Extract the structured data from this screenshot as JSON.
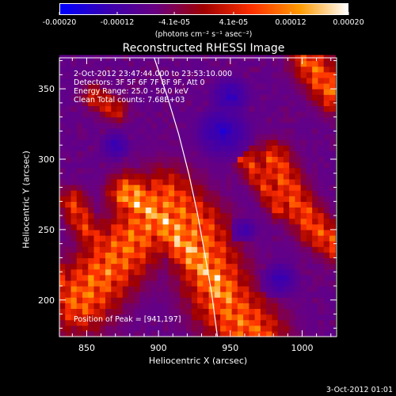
{
  "colorbar": {
    "ticks": [
      "-0.00020",
      "-0.00012",
      "-4.1e-05",
      "4.1e-05",
      "0.00012",
      "0.00020"
    ],
    "tick_values": [
      -0.0002,
      -0.00012,
      -4.1e-05,
      4.1e-05,
      0.00012,
      0.0002
    ],
    "range": [
      -0.0002,
      0.0002
    ],
    "units": "(photons cm⁻² s⁻¹ asec⁻²)",
    "colors": [
      "#0000ff",
      "#3a00b0",
      "#6a0080",
      "#a00000",
      "#ff3000",
      "#ff9a00",
      "#ffffff"
    ]
  },
  "chart_data": {
    "type": "heatmap",
    "title": "Reconstructed RHESSI Image",
    "xlabel": "Heliocentric X (arcsec)",
    "ylabel": "Heliocentric Y (arcsec)",
    "xlim": [
      831,
      1024
    ],
    "ylim": [
      174,
      372
    ],
    "xticks": [
      850,
      900,
      950,
      1000
    ],
    "yticks": [
      200,
      250,
      300,
      350
    ],
    "info_lines": [
      "2-Oct-2012 23:47:44.000 to 23:53:10.000",
      "Detectors: 3F 5F 6F 7F 8F 9F, Att 0",
      "Energy Range: 25.0 - 50.0 keV",
      "Clean    Total counts: 7.68E+03"
    ],
    "peak_label": "Position of Peak = [941,197]",
    "peak": [
      941,
      197
    ],
    "limb_curve": [
      [
        897,
        372
      ],
      [
        906,
        345
      ],
      [
        914,
        318
      ],
      [
        921,
        290
      ],
      [
        927,
        262
      ],
      [
        932,
        234
      ],
      [
        937,
        205
      ],
      [
        941,
        174
      ]
    ],
    "ridges": [
      {
        "points": [
          [
            845,
            200
          ],
          [
            875,
            235
          ],
          [
            905,
            270
          ],
          [
            925,
            250
          ],
          [
            945,
            200
          ],
          [
            965,
            175
          ]
        ],
        "width": 16,
        "level": 0.82
      },
      {
        "points": [
          [
            880,
            275
          ],
          [
            905,
            255
          ],
          [
            925,
            232
          ],
          [
            945,
            205
          ]
        ],
        "width": 10,
        "level": 0.95
      },
      {
        "points": [
          [
            980,
            300
          ],
          [
            995,
            270
          ],
          [
            1010,
            250
          ],
          [
            1024,
            240
          ]
        ],
        "width": 9,
        "level": 0.75
      },
      {
        "points": [
          [
            960,
            302
          ],
          [
            972,
            285
          ],
          [
            985,
            265
          ]
        ],
        "width": 6,
        "level": 0.7
      },
      {
        "points": [
          [
            1005,
            370
          ],
          [
            1015,
            355
          ],
          [
            1024,
            345
          ]
        ],
        "width": 9,
        "level": 0.8
      },
      {
        "points": [
          [
            840,
            270
          ],
          [
            850,
            250
          ],
          [
            860,
            240
          ]
        ],
        "width": 7,
        "level": 0.7
      },
      {
        "points": [
          [
            855,
            345
          ],
          [
            870,
            335
          ]
        ],
        "width": 6,
        "level": 0.65
      },
      {
        "points": [
          [
            831,
            215
          ],
          [
            840,
            205
          ],
          [
            850,
            195
          ]
        ],
        "width": 8,
        "level": 0.7
      }
    ],
    "blue_zones": [
      {
        "center": [
          945,
          320
        ],
        "radius": 22,
        "level": 0.08
      },
      {
        "center": [
          950,
          345
        ],
        "radius": 16,
        "level": 0.1
      },
      {
        "center": [
          870,
          310
        ],
        "radius": 12,
        "level": 0.12
      },
      {
        "center": [
          985,
          215
        ],
        "radius": 14,
        "level": 0.12
      },
      {
        "center": [
          960,
          250
        ],
        "radius": 10,
        "level": 0.15
      }
    ]
  },
  "footer": {
    "date": "3-Oct-2012 01:01"
  }
}
